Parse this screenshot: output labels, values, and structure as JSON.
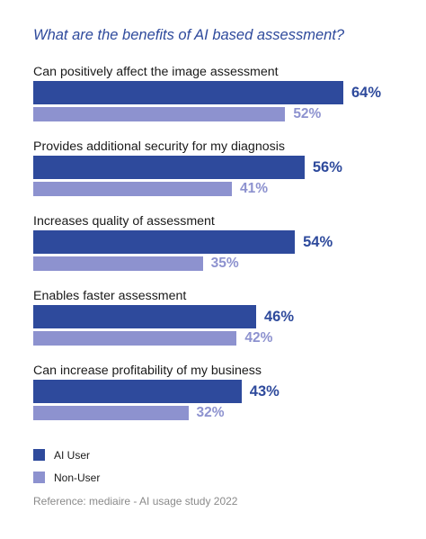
{
  "chart_data": {
    "type": "bar",
    "orientation": "horizontal",
    "title": "What are the benefits of AI based assessment?",
    "categories": [
      "Can positively affect the image assessment",
      "Provides additional security for my diagnosis",
      "Increases quality of assessment",
      "Enables faster assessment",
      "Can increase profitability of my business"
    ],
    "series": [
      {
        "name": "AI User",
        "values": [
          64,
          56,
          54,
          46,
          43
        ],
        "labels": [
          "64%",
          "56%",
          "54%",
          "46%",
          "43%"
        ],
        "color": "#2e4a9c"
      },
      {
        "name": "Non-User",
        "values": [
          52,
          41,
          35,
          42,
          32
        ],
        "labels": [
          "52%",
          "41%",
          "35%",
          "42%",
          "32%"
        ],
        "color": "#8d92cf"
      }
    ],
    "xlim": [
      0,
      64
    ],
    "grid": false,
    "legend_position": "bottom-left"
  },
  "reference": "Reference: mediaire - AI usage study 2022"
}
